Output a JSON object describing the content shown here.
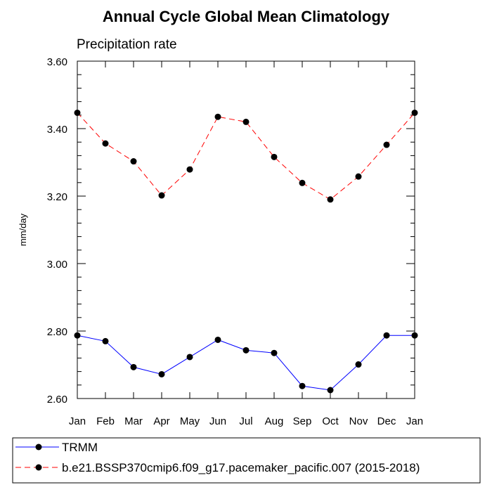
{
  "chart_data": {
    "type": "line",
    "title": "Annual Cycle Global Mean Climatology",
    "subtitle": "Precipitation rate",
    "xlabel": "",
    "ylabel": "mm/day",
    "categories": [
      "Jan",
      "Feb",
      "Mar",
      "Apr",
      "May",
      "Jun",
      "Jul",
      "Aug",
      "Sep",
      "Oct",
      "Nov",
      "Dec",
      "Jan"
    ],
    "ylim": [
      2.6,
      3.6
    ],
    "yticks": [
      "2.60",
      "2.80",
      "3.00",
      "3.20",
      "3.40",
      "3.60"
    ],
    "grid": false,
    "legend_position": "bottom",
    "series": [
      {
        "name": "TRMM",
        "color": "#0000ff",
        "style": "solid",
        "values": [
          2.787,
          2.77,
          2.693,
          2.672,
          2.723,
          2.774,
          2.743,
          2.735,
          2.637,
          2.625,
          2.701,
          2.787,
          2.787
        ]
      },
      {
        "name": "b.e21.BSSP370cmip6.f09_g17.pacemaker_pacific.007 (2015-2018)",
        "color": "#ff0000",
        "style": "dashed",
        "values": [
          3.447,
          3.356,
          3.303,
          3.202,
          3.279,
          3.435,
          3.42,
          3.316,
          3.239,
          3.19,
          3.258,
          3.352,
          3.447
        ]
      }
    ]
  }
}
